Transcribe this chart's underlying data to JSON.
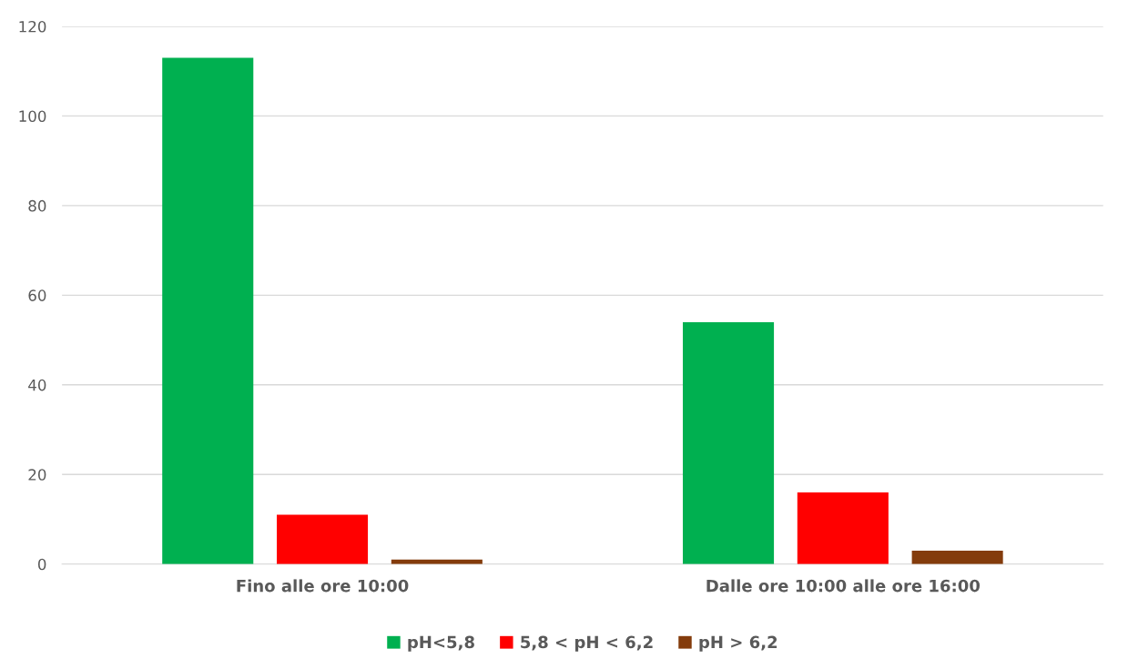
{
  "chart_data": {
    "type": "bar",
    "categories": [
      "Fino alle ore 10:00",
      "Dalle ore 10:00 alle ore 16:00"
    ],
    "series": [
      {
        "name": "pH<5,8",
        "color": "#00b050",
        "values": [
          113,
          54
        ]
      },
      {
        "name": "5,8 < pH < 6,2",
        "color": "#ff0000",
        "values": [
          11,
          16
        ]
      },
      {
        "name": "pH > 6,2",
        "color": "#843c0c",
        "values": [
          1,
          3
        ]
      }
    ],
    "ylim": [
      0,
      120
    ],
    "yticks": [
      0,
      20,
      40,
      60,
      80,
      100,
      120
    ],
    "grid": "y",
    "legend": "bottom"
  }
}
